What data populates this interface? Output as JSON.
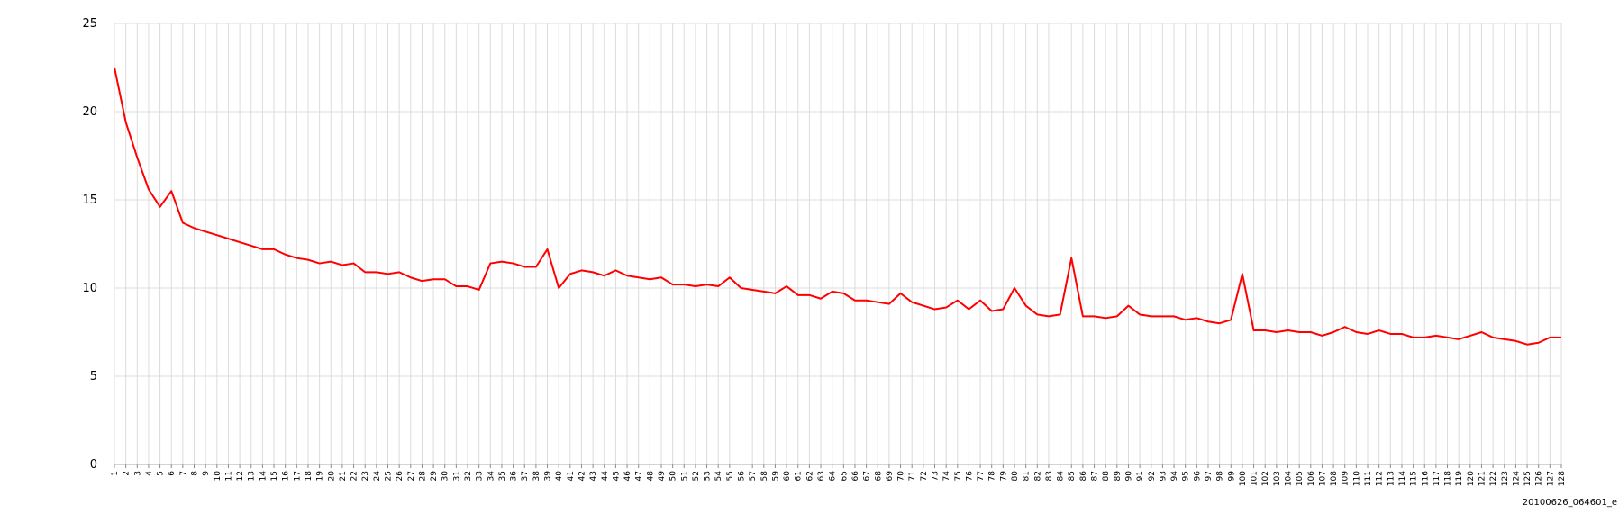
{
  "chart_data": {
    "type": "line",
    "categories": [
      "1",
      "2",
      "3",
      "4",
      "5",
      "6",
      "7",
      "8",
      "9",
      "10",
      "11",
      "12",
      "13",
      "14",
      "15",
      "16",
      "17",
      "18",
      "19",
      "20",
      "21",
      "22",
      "23",
      "24",
      "25",
      "26",
      "27",
      "28",
      "29",
      "30",
      "31",
      "32",
      "33",
      "34",
      "35",
      "36",
      "37",
      "38",
      "39",
      "40",
      "41",
      "42",
      "43",
      "44",
      "45",
      "46",
      "47",
      "48",
      "49",
      "50",
      "51",
      "52",
      "53",
      "54",
      "55",
      "56",
      "57",
      "58",
      "59",
      "60",
      "61",
      "62",
      "63",
      "64",
      "65",
      "66",
      "67",
      "68",
      "69",
      "70",
      "71",
      "72",
      "73",
      "74",
      "75",
      "76",
      "77",
      "78",
      "79",
      "80",
      "81",
      "82",
      "83",
      "84",
      "85",
      "86",
      "87",
      "88",
      "89",
      "90",
      "91",
      "92",
      "93",
      "94",
      "95",
      "96",
      "97",
      "98",
      "99",
      "100",
      "101",
      "102",
      "103",
      "104",
      "105",
      "106",
      "107",
      "108",
      "109",
      "110",
      "111",
      "112",
      "113",
      "114",
      "115",
      "116",
      "117",
      "118",
      "119",
      "120",
      "121",
      "122",
      "123",
      "124",
      "125",
      "126",
      "127",
      "128"
    ],
    "values": [
      22.5,
      19.4,
      17.4,
      15.6,
      14.6,
      15.5,
      13.7,
      13.4,
      13.2,
      13.0,
      12.8,
      12.6,
      12.4,
      12.2,
      12.2,
      11.9,
      11.7,
      11.6,
      11.4,
      11.5,
      11.3,
      11.4,
      10.9,
      10.9,
      10.8,
      10.9,
      10.6,
      10.4,
      10.5,
      10.5,
      10.1,
      10.1,
      9.9,
      11.4,
      11.5,
      11.4,
      11.2,
      11.2,
      12.2,
      10.0,
      10.8,
      11.0,
      10.9,
      10.7,
      11.0,
      10.7,
      10.6,
      10.5,
      10.6,
      10.2,
      10.2,
      10.1,
      10.2,
      10.1,
      10.6,
      10.0,
      9.9,
      9.8,
      9.7,
      10.1,
      9.6,
      9.6,
      9.4,
      9.8,
      9.7,
      9.3,
      9.3,
      9.2,
      9.1,
      9.7,
      9.2,
      9.0,
      8.8,
      8.9,
      9.3,
      8.8,
      9.3,
      8.7,
      8.8,
      10.0,
      9.0,
      8.5,
      8.4,
      8.5,
      11.7,
      8.4,
      8.4,
      8.3,
      8.4,
      9.0,
      8.5,
      8.4,
      8.4,
      8.4,
      8.2,
      8.3,
      8.1,
      8.0,
      8.2,
      10.8,
      7.6,
      7.6,
      7.5,
      7.6,
      7.5,
      7.5,
      7.3,
      7.5,
      7.8,
      7.5,
      7.4,
      7.6,
      7.4,
      7.4,
      7.2,
      7.2,
      7.3,
      7.2,
      7.1,
      7.3,
      7.5,
      7.2,
      7.1,
      7.0,
      6.8,
      6.9,
      7.2,
      7.2
    ],
    "color": "#ff0000",
    "ylim": [
      0,
      25
    ],
    "yticks": [
      0,
      5,
      10,
      15,
      20,
      25
    ],
    "grid": true,
    "footer": "20100626_064601_e"
  }
}
